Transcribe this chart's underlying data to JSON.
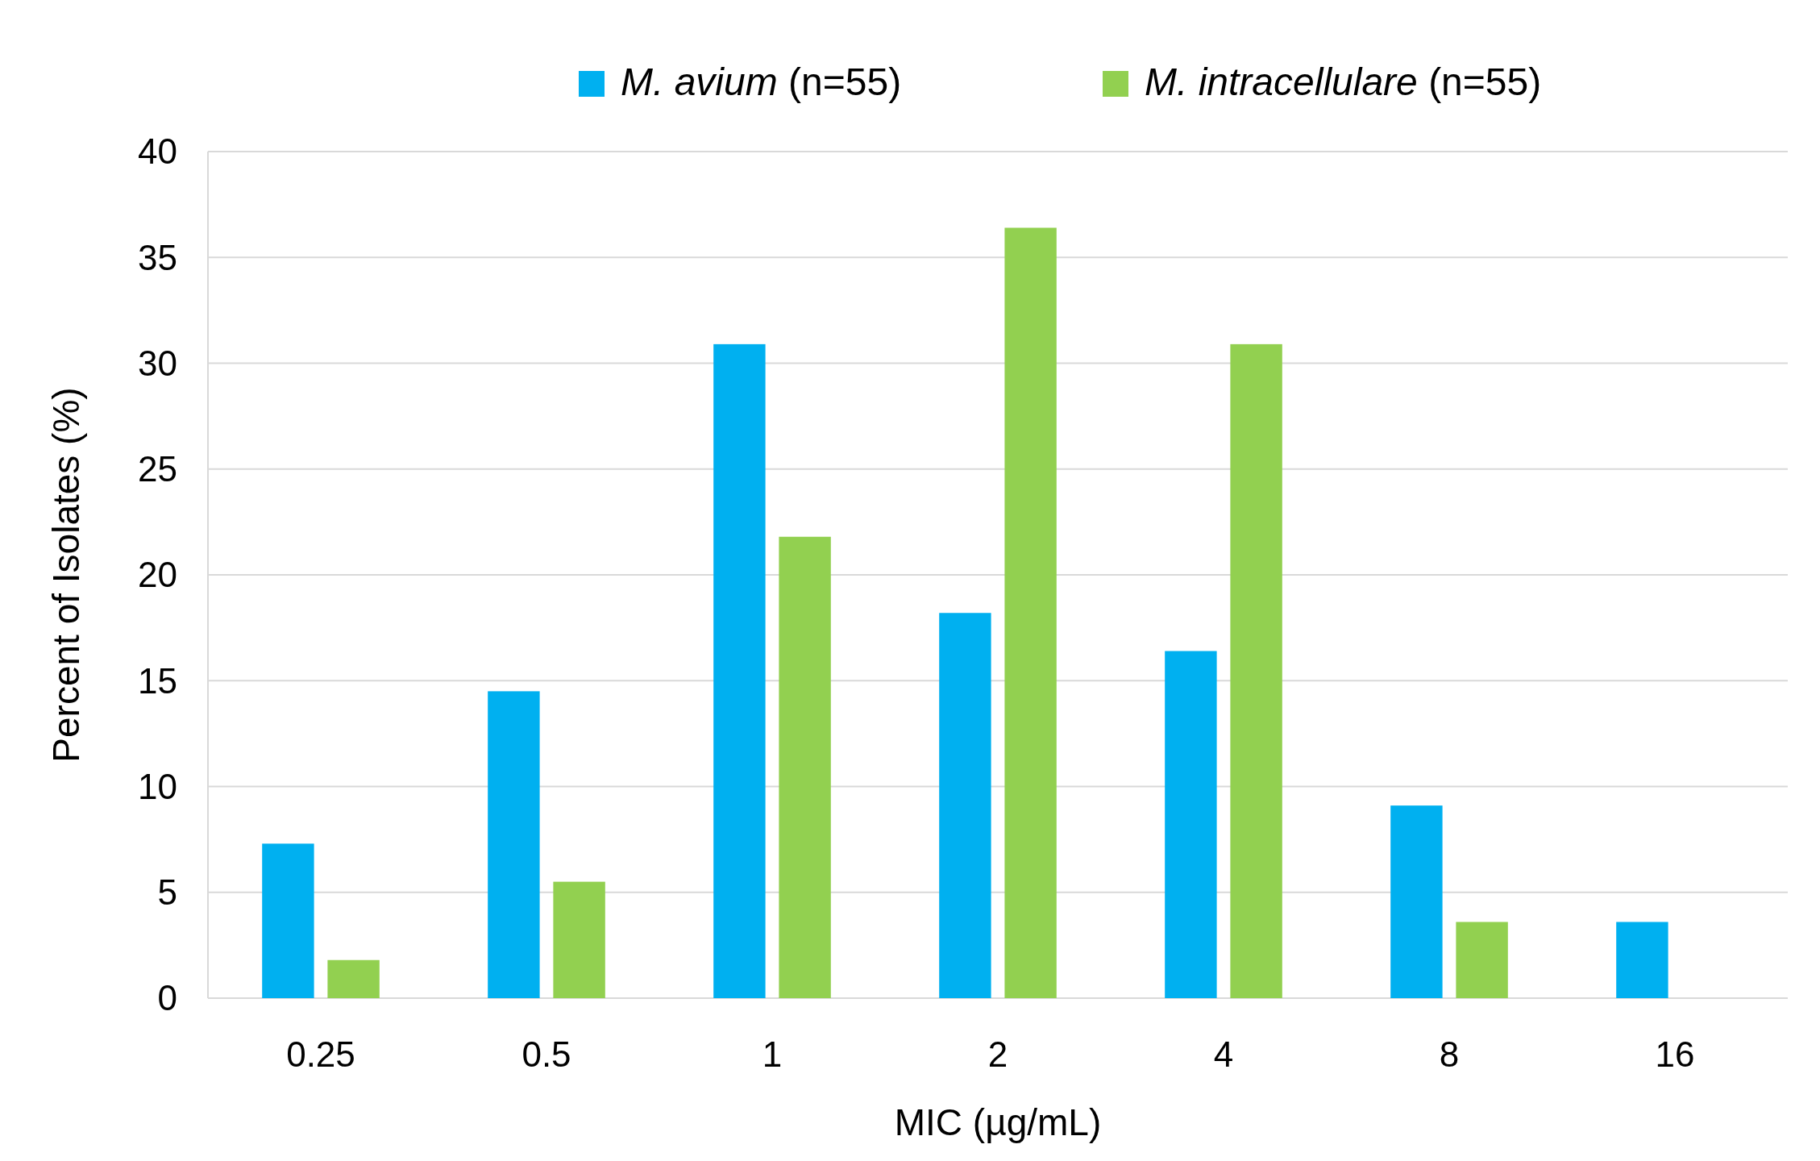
{
  "chart_data": {
    "type": "bar",
    "xlabel": "MIC (µg/mL)",
    "ylabel": "Percent of Isolates (%)",
    "categories": [
      "0.25",
      "0.5",
      "1",
      "2",
      "4",
      "8",
      "16"
    ],
    "series": [
      {
        "name": "M. avium (n=55)",
        "color": "#00b0f0",
        "values": [
          7.3,
          14.5,
          30.9,
          18.2,
          16.4,
          9.1,
          3.6
        ]
      },
      {
        "name": "M. intracellulare (n=55)",
        "color": "#92d050",
        "values": [
          1.8,
          5.5,
          21.8,
          36.4,
          30.9,
          3.6,
          0
        ]
      }
    ],
    "ylim": [
      0,
      40
    ],
    "yticks": [
      0,
      5,
      10,
      15,
      20,
      25,
      30,
      35,
      40
    ],
    "grid": "y",
    "legend": "top"
  }
}
